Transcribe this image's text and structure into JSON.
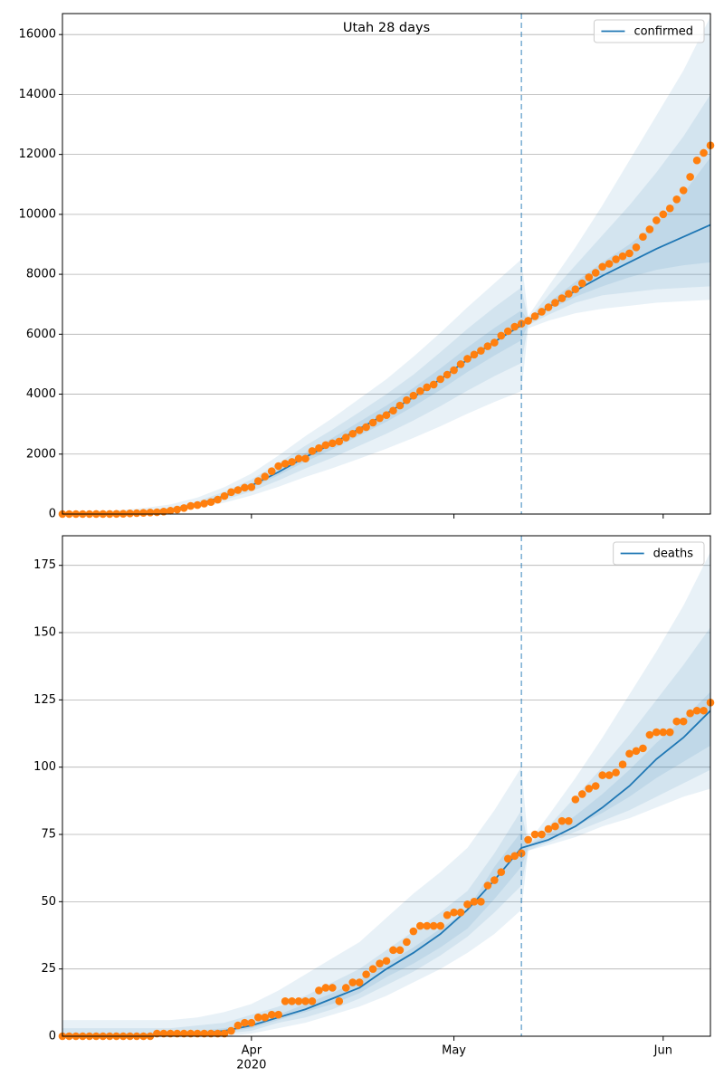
{
  "chart_data": [
    {
      "type": "line",
      "title": "Utah 28 days",
      "legend": "upper right",
      "grid": true,
      "vline_x": 132,
      "xlim": [
        64,
        160
      ],
      "xticks": [
        92,
        122,
        153
      ],
      "ylim": [
        0,
        16700
      ],
      "yticks": [
        0,
        2000,
        4000,
        6000,
        8000,
        10000,
        12000,
        14000,
        16000
      ],
      "series": [
        {
          "name": "confirmed",
          "color": "#1f77b4",
          "x": [
            64,
            68,
            72,
            76,
            80,
            84,
            88,
            92,
            96,
            100,
            104,
            108,
            112,
            116,
            120,
            124,
            128,
            132,
            136,
            140,
            144,
            148,
            152,
            156,
            160
          ],
          "values": [
            0,
            5,
            20,
            60,
            150,
            320,
            600,
            950,
            1400,
            1900,
            2350,
            2850,
            3350,
            3900,
            4500,
            5150,
            5750,
            6300,
            6900,
            7450,
            7950,
            8400,
            8850,
            9250,
            9650
          ]
        }
      ],
      "observed": {
        "color": "#ff7f0e",
        "x": [
          64,
          65,
          66,
          67,
          68,
          69,
          70,
          71,
          72,
          73,
          74,
          75,
          76,
          77,
          78,
          79,
          80,
          81,
          82,
          83,
          84,
          85,
          86,
          87,
          88,
          89,
          90,
          91,
          92,
          93,
          94,
          95,
          96,
          97,
          98,
          99,
          100,
          101,
          102,
          103,
          104,
          105,
          106,
          107,
          108,
          109,
          110,
          111,
          112,
          113,
          114,
          115,
          116,
          117,
          118,
          119,
          120,
          121,
          122,
          123,
          124,
          125,
          126,
          127,
          128,
          129,
          130,
          131,
          132,
          133,
          134,
          135,
          136,
          137,
          138,
          139,
          140,
          141,
          142,
          143,
          144,
          145,
          146,
          147,
          148,
          149,
          150,
          151,
          152,
          153,
          154,
          155,
          156,
          157,
          158,
          159,
          160
        ],
        "values": [
          0,
          0,
          0,
          0,
          0,
          1,
          2,
          3,
          5,
          10,
          20,
          30,
          40,
          50,
          60,
          80,
          110,
          150,
          200,
          270,
          300,
          350,
          400,
          480,
          600,
          730,
          800,
          880,
          900,
          1100,
          1250,
          1430,
          1600,
          1680,
          1740,
          1850,
          1850,
          2100,
          2200,
          2300,
          2360,
          2420,
          2550,
          2680,
          2800,
          2900,
          3050,
          3200,
          3300,
          3450,
          3620,
          3800,
          3950,
          4100,
          4230,
          4320,
          4500,
          4650,
          4800,
          5000,
          5180,
          5320,
          5450,
          5600,
          5720,
          5950,
          6100,
          6250,
          6350,
          6450,
          6600,
          6750,
          6900,
          7050,
          7200,
          7350,
          7500,
          7700,
          7900,
          8050,
          8250,
          8350,
          8500,
          8600,
          8700,
          8900,
          9250,
          9500,
          9800,
          10000,
          10200,
          10500,
          10800,
          11250,
          11800,
          12050,
          12300
        ]
      },
      "band_color": "#1f77b4",
      "band_x": [
        64,
        68,
        72,
        76,
        80,
        84,
        88,
        92,
        96,
        100,
        104,
        108,
        112,
        116,
        120,
        124,
        128,
        132,
        133,
        136,
        140,
        144,
        148,
        152,
        156,
        160
      ],
      "bands": [
        {
          "lower": [
            0,
            0,
            10,
            30,
            90,
            200,
            380,
            620,
            910,
            1240,
            1530,
            1850,
            2180,
            2540,
            2930,
            3350,
            3740,
            4100,
            6200,
            6450,
            6700,
            6850,
            6950,
            7050,
            7100,
            7150
          ],
          "upper": [
            60,
            80,
            120,
            200,
            320,
            550,
            900,
            1350,
            1950,
            2600,
            3200,
            3850,
            4500,
            5250,
            6050,
            6900,
            7700,
            8500,
            6600,
            7600,
            8900,
            10300,
            11800,
            13300,
            14800,
            16600
          ]
        },
        {
          "lower": [
            0,
            0,
            15,
            45,
            110,
            250,
            470,
            760,
            1120,
            1520,
            1880,
            2280,
            2680,
            3120,
            3600,
            4120,
            4600,
            5040,
            6300,
            6650,
            7050,
            7300,
            7400,
            7500,
            7550,
            7600
          ],
          "upper": [
            30,
            40,
            60,
            110,
            210,
            420,
            750,
            1150,
            1700,
            2280,
            2820,
            3400,
            4000,
            4650,
            5400,
            6180,
            6900,
            7560,
            6500,
            7300,
            8300,
            9300,
            10300,
            11400,
            12600,
            14000
          ]
        },
        {
          "lower": [
            0,
            2,
            18,
            55,
            135,
            295,
            550,
            875,
            1290,
            1750,
            2160,
            2620,
            3080,
            3590,
            4140,
            4740,
            5290,
            5800,
            6350,
            6800,
            7250,
            7600,
            7900,
            8150,
            8300,
            8400
          ],
          "upper": [
            10,
            15,
            30,
            75,
            170,
            350,
            650,
            1030,
            1510,
            2050,
            2540,
            3080,
            3620,
            4210,
            4860,
            5560,
            6210,
            6800,
            6450,
            7050,
            7750,
            8400,
            9000,
            9700,
            10700,
            11900
          ]
        }
      ]
    },
    {
      "type": "line",
      "legend": "upper right",
      "grid": true,
      "vline_x": 132,
      "xlim": [
        64,
        160
      ],
      "xticks": [
        {
          "value": 92,
          "label": "Apr"
        },
        {
          "value": 122,
          "label": "May"
        },
        {
          "value": 153,
          "label": "Jun"
        }
      ],
      "xlabel_year": "2020",
      "ylim": [
        0,
        186
      ],
      "yticks": [
        0,
        25,
        50,
        75,
        100,
        125,
        150,
        175
      ],
      "series": [
        {
          "name": "deaths",
          "color": "#1f77b4",
          "x": [
            64,
            68,
            72,
            76,
            80,
            84,
            88,
            92,
            96,
            100,
            104,
            108,
            112,
            116,
            120,
            124,
            128,
            132,
            136,
            140,
            144,
            148,
            152,
            156,
            160
          ],
          "values": [
            0,
            0,
            0,
            0,
            0.5,
            1,
            2,
            4,
            7,
            10,
            14,
            18,
            25,
            31,
            38,
            47,
            58,
            70,
            73,
            78,
            85,
            93,
            103,
            111,
            121
          ]
        }
      ],
      "observed": {
        "color": "#ff7f0e",
        "x": [
          64,
          65,
          66,
          67,
          68,
          69,
          70,
          71,
          72,
          73,
          74,
          75,
          76,
          77,
          78,
          79,
          80,
          81,
          82,
          83,
          84,
          85,
          86,
          87,
          88,
          89,
          90,
          91,
          92,
          93,
          94,
          95,
          96,
          97,
          98,
          99,
          100,
          101,
          102,
          103,
          104,
          105,
          106,
          107,
          108,
          109,
          110,
          111,
          112,
          113,
          114,
          115,
          116,
          117,
          118,
          119,
          120,
          121,
          122,
          123,
          124,
          125,
          126,
          127,
          128,
          129,
          130,
          131,
          132,
          133,
          134,
          135,
          136,
          137,
          138,
          139,
          140,
          141,
          142,
          143,
          144,
          145,
          146,
          147,
          148,
          149,
          150,
          151,
          152,
          153,
          154,
          155,
          156,
          157,
          158,
          159,
          160
        ],
        "values": [
          0,
          0,
          0,
          0,
          0,
          0,
          0,
          0,
          0,
          0,
          0,
          0,
          0,
          0,
          1,
          1,
          1,
          1,
          1,
          1,
          1,
          1,
          1,
          1,
          1,
          2,
          4,
          5,
          5,
          7,
          7,
          8,
          8,
          13,
          13,
          13,
          13,
          13,
          17,
          18,
          18,
          13,
          18,
          20,
          20,
          23,
          25,
          27,
          28,
          32,
          32,
          35,
          39,
          41,
          41,
          41,
          41,
          45,
          46,
          46,
          49,
          50,
          50,
          56,
          58,
          61,
          66,
          67,
          68,
          73,
          75,
          75,
          77,
          78,
          80,
          80,
          88,
          90,
          92,
          93,
          97,
          97,
          98,
          101,
          105,
          106,
          107,
          112,
          113,
          113,
          113,
          117,
          117,
          120,
          121,
          121,
          124
        ]
      },
      "band_color": "#1f77b4",
      "band_x": [
        64,
        68,
        72,
        76,
        80,
        84,
        88,
        92,
        96,
        100,
        104,
        108,
        112,
        116,
        120,
        124,
        128,
        132,
        133,
        136,
        140,
        144,
        148,
        152,
        156,
        160
      ],
      "bands": [
        {
          "lower": [
            0,
            0,
            0,
            0,
            0,
            0,
            0,
            1,
            3,
            5,
            8,
            11,
            15,
            20,
            25,
            31,
            38,
            47,
            69,
            71,
            74,
            78,
            81,
            85,
            89,
            92
          ],
          "upper": [
            6,
            6,
            6,
            6,
            6,
            7,
            9,
            12,
            17,
            23,
            29,
            35,
            44,
            53,
            61,
            70,
            84,
            100,
            72,
            82,
            96,
            111,
            127,
            143,
            160,
            180
          ]
        },
        {
          "lower": [
            0,
            0,
            0,
            0,
            0,
            0,
            1,
            2,
            5,
            7,
            10,
            14,
            19,
            24,
            30,
            37,
            46,
            56,
            69,
            72,
            76,
            80,
            84,
            89,
            94,
            99
          ],
          "upper": [
            3,
            3,
            3,
            3,
            3,
            4,
            5,
            8,
            11,
            15,
            20,
            25,
            32,
            39,
            46,
            54,
            68,
            84,
            71,
            78,
            89,
            100,
            112,
            125,
            138,
            152
          ]
        },
        {
          "lower": [
            0,
            0,
            0,
            0,
            0,
            0.5,
            1.5,
            3,
            6,
            9,
            12,
            16,
            22,
            27,
            33,
            40,
            51,
            63,
            70,
            73,
            78,
            83,
            89,
            96,
            102,
            108
          ],
          "upper": [
            1,
            1,
            1,
            1,
            1.5,
            2,
            3,
            5,
            8,
            12,
            16,
            21,
            27,
            33,
            40,
            47,
            63,
            76,
            71,
            75,
            82,
            90,
            99,
            109,
            118,
            128
          ]
        }
      ]
    }
  ]
}
